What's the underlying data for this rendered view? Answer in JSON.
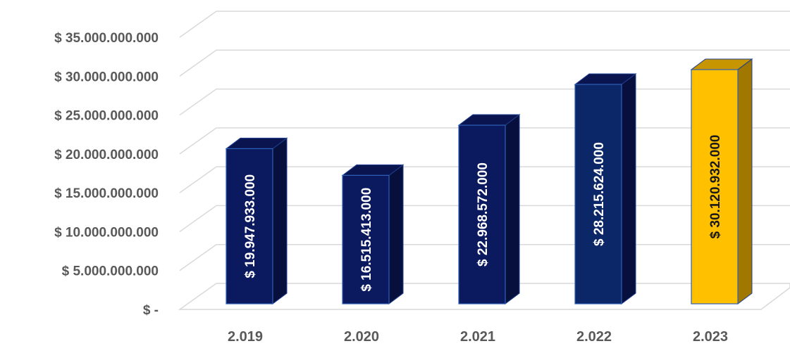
{
  "chart_data": {
    "type": "bar",
    "categories": [
      "2.019",
      "2.020",
      "2.021",
      "2.022",
      "2.023"
    ],
    "values": [
      19947933000,
      16515413000,
      22968572000,
      28215624000,
      30120932000
    ],
    "value_labels": [
      "$ 19.947.933.000",
      "$ 16.515.413.000",
      "$ 22.968.572.000",
      "$ 28.215.624.000",
      "$ 30.120.932.000"
    ],
    "y_ticks": [
      0,
      5000000000,
      10000000000,
      15000000000,
      20000000000,
      25000000000,
      30000000000,
      35000000000
    ],
    "y_tick_labels": [
      "$ -",
      "$ 5.000.000.000",
      "$ 10.000.000.000",
      "$ 15.000.000.000",
      "$ 20.000.000.000",
      "$ 25.000.000.000",
      "$ 30.000.000.000",
      "$ 35.000.000.000"
    ],
    "ylim": [
      0,
      35000000000
    ],
    "title": "",
    "xlabel": "",
    "ylabel": "",
    "grid": true,
    "legend": false,
    "style": "3d-column",
    "bar_colors": [
      "#0b1a5e",
      "#0b1a5e",
      "#0b1a5e",
      "#0b2767",
      "#ffc000"
    ],
    "label_colors": [
      "#ffffff",
      "#ffffff",
      "#ffffff",
      "#ffffff",
      "#1a1a1a"
    ],
    "grid_color": "#d9d9d9",
    "tick_color": "#595959"
  }
}
